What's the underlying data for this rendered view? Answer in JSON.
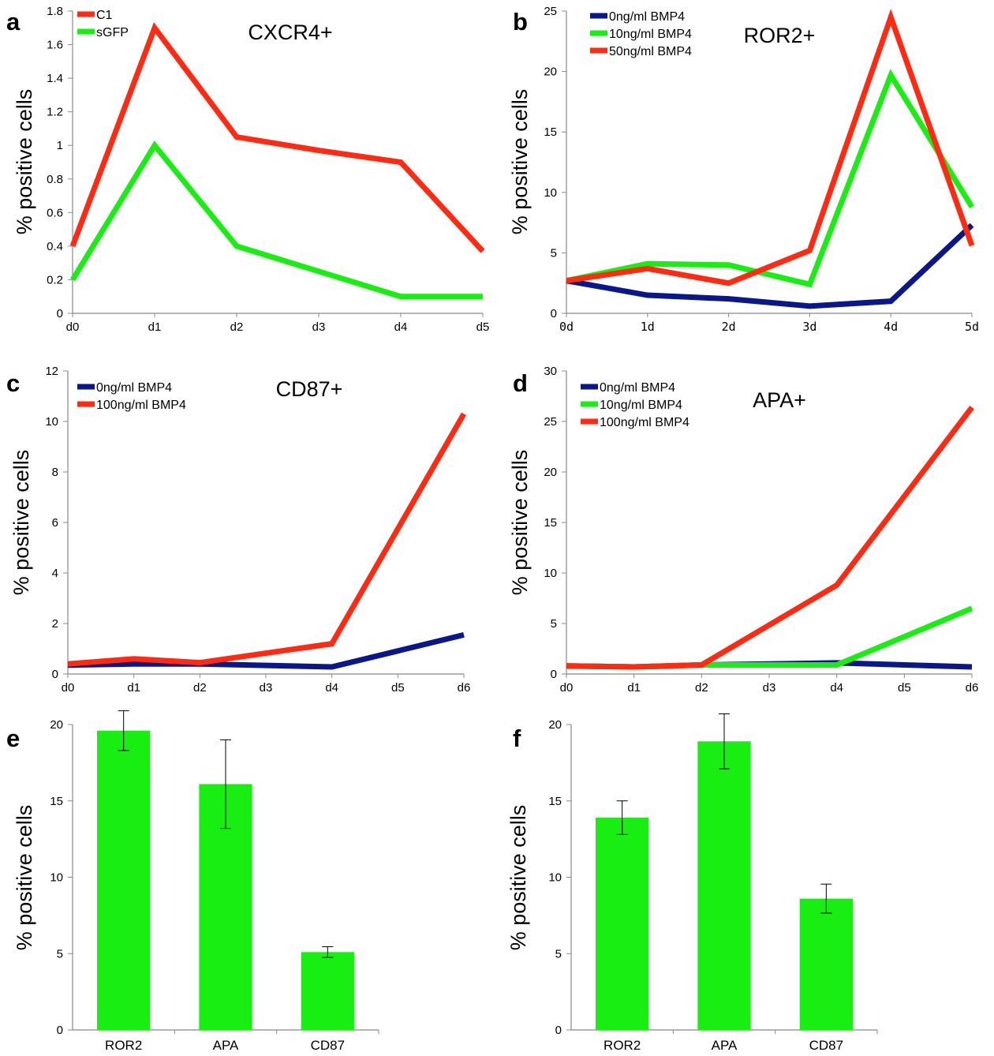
{
  "figure": {
    "panels": [
      {
        "letter": "a",
        "title": "CXCR4+"
      },
      {
        "letter": "b",
        "title": "ROR2+"
      },
      {
        "letter": "c",
        "title": "CD87+"
      },
      {
        "letter": "d",
        "title": "APA+"
      },
      {
        "letter": "e",
        "title": ""
      },
      {
        "letter": "f",
        "title": ""
      }
    ]
  },
  "colors": {
    "red": "#ff2a12",
    "green": "#19ee12",
    "blue": "#0a178a",
    "axis": "#888888"
  },
  "chart_data": [
    {
      "type": "line",
      "title": "CXCR4+",
      "ylabel": "% positive cells",
      "xlabel": "",
      "categories": [
        "d0",
        "d1",
        "d2",
        "d3",
        "d4",
        "d5"
      ],
      "ylim": [
        0,
        1.8
      ],
      "yticks": [
        "0",
        "0.2",
        "0.4",
        "0.6",
        "0.8",
        "1",
        "1.2",
        "1.4",
        "1.6",
        "1.8"
      ],
      "legend": "top-left",
      "series": [
        {
          "name": "C1",
          "color": "red",
          "values": [
            0.4,
            1.7,
            1.05,
            0.97,
            0.9,
            0.37
          ]
        },
        {
          "name": "sGFP",
          "color": "green",
          "values": [
            0.2,
            1.0,
            0.4,
            0.25,
            0.1,
            0.1
          ]
        }
      ]
    },
    {
      "type": "line",
      "title": "ROR2+",
      "ylabel": "% positive cells",
      "xlabel": "",
      "categories": [
        "0d",
        "1d",
        "2d",
        "3d",
        "4d",
        "5d"
      ],
      "ylim": [
        0,
        25
      ],
      "yticks": [
        "0",
        "5",
        "10",
        "15",
        "20",
        "25"
      ],
      "legend": "top-left",
      "series": [
        {
          "name": "0ng/ml BMP4",
          "color": "blue",
          "values": [
            2.7,
            1.5,
            1.2,
            0.6,
            1.0,
            7.3
          ]
        },
        {
          "name": "10ng/ml BMP4",
          "color": "green",
          "values": [
            2.7,
            4.1,
            4.0,
            2.4,
            19.7,
            8.8
          ]
        },
        {
          "name": "50ng/ml BMP4",
          "color": "red",
          "values": [
            2.7,
            3.7,
            2.5,
            5.2,
            24.5,
            5.6
          ]
        }
      ]
    },
    {
      "type": "line",
      "title": "CD87+",
      "ylabel": "% positive cells",
      "xlabel": "",
      "categories": [
        "d0",
        "d1",
        "d2",
        "d3",
        "d4",
        "d5",
        "d6"
      ],
      "ylim": [
        0,
        12
      ],
      "yticks": [
        "0",
        "2",
        "4",
        "6",
        "8",
        "10",
        "12"
      ],
      "legend": "top-left",
      "series": [
        {
          "name": "0ng/ml BMP4",
          "color": "blue",
          "values": [
            0.35,
            0.4,
            0.4,
            null,
            0.28,
            null,
            1.55
          ],
          "connect": true
        },
        {
          "name": "100ng/ml BMP4",
          "color": "red",
          "values": [
            0.4,
            0.6,
            0.45,
            null,
            1.2,
            null,
            10.3
          ],
          "connect": true
        }
      ]
    },
    {
      "type": "line",
      "title": "APA+",
      "ylabel": "% positive cells",
      "xlabel": "",
      "categories": [
        "d0",
        "d1",
        "d2",
        "d3",
        "d4",
        "d5",
        "d6"
      ],
      "ylim": [
        0,
        30
      ],
      "yticks": [
        "0",
        "5",
        "10",
        "15",
        "20",
        "25",
        "30"
      ],
      "legend": "top-left",
      "series": [
        {
          "name": "0ng/ml BMP4",
          "color": "blue",
          "values": [
            0.8,
            0.7,
            0.9,
            null,
            1.1,
            null,
            0.7
          ],
          "connect": true
        },
        {
          "name": "10ng/ml BMP4",
          "color": "green",
          "values": [
            0.8,
            0.7,
            0.9,
            null,
            0.9,
            null,
            6.5
          ],
          "connect": true
        },
        {
          "name": "100ng/ml BMP4",
          "color": "red",
          "values": [
            0.8,
            0.7,
            0.9,
            null,
            8.8,
            null,
            26.4
          ],
          "connect": true
        }
      ]
    },
    {
      "type": "bar",
      "title": "",
      "ylabel": "% positive cells",
      "xlabel": "",
      "categories": [
        "ROR2",
        "APA",
        "CD87"
      ],
      "ylim": [
        0,
        20
      ],
      "yticks": [
        "0",
        "5",
        "10",
        "15",
        "20"
      ],
      "series": [
        {
          "name": "",
          "color": "green",
          "values": [
            19.6,
            16.1,
            5.1
          ],
          "errors": [
            1.3,
            2.9,
            0.35
          ]
        }
      ]
    },
    {
      "type": "bar",
      "title": "",
      "ylabel": "% positive cells",
      "xlabel": "",
      "categories": [
        "ROR2",
        "APA",
        "CD87"
      ],
      "ylim": [
        0,
        20
      ],
      "yticks": [
        "0",
        "5",
        "10",
        "15",
        "20"
      ],
      "series": [
        {
          "name": "",
          "color": "green",
          "values": [
            13.9,
            18.9,
            8.6
          ],
          "errors": [
            1.1,
            1.8,
            0.95
          ]
        }
      ]
    }
  ]
}
